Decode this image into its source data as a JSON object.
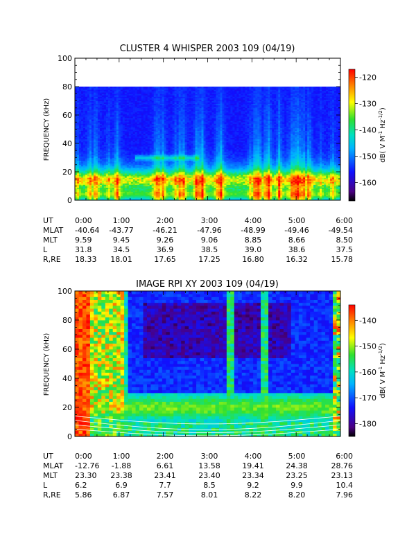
{
  "chart_data": [
    {
      "type": "heatmap",
      "title": "CLUSTER 4 WHISPER 2003 109 (04/19)",
      "ylabel": "FREQUENCY (kHz)",
      "colorbar_label": "dB( V M⁻¹ Hz⁻¹ᐟ²)",
      "colorbar_label_parts": [
        "dB( V M",
        "-1",
        " Hz",
        "-1/2",
        ")"
      ],
      "ylim": [
        0,
        100
      ],
      "data_fmax": 80,
      "yticks": [
        "0",
        "20",
        "40",
        "60",
        "80",
        "100"
      ],
      "xticks": [
        "0:00",
        "1:00",
        "2:00",
        "3:00",
        "4:00",
        "5:00",
        "6:00"
      ],
      "colorbar_range": [
        -167,
        -117
      ],
      "colorbar_ticks": [
        "-120",
        "-130",
        "-140",
        "-150",
        "-160"
      ],
      "colorbar_tick_values": [
        -120,
        -130,
        -140,
        -150,
        -160
      ],
      "ephemeris": [
        {
          "label": "UT",
          "values": [
            "0:00",
            "1:00",
            "2:00",
            "3:00",
            "4:00",
            "5:00",
            "6:00"
          ]
        },
        {
          "label": "MLAT",
          "values": [
            "-40.64",
            "-43.77",
            "-46.21",
            "-47.96",
            "-48.99",
            "-49.46",
            "-49.54"
          ]
        },
        {
          "label": "MLT",
          "values": [
            "9.59",
            "9.45",
            "9.26",
            "9.06",
            "8.85",
            "8.66",
            "8.50"
          ]
        },
        {
          "label": "L",
          "values": [
            "31.8",
            "34.5",
            "36.9",
            "38.5",
            "39.0",
            "38.6",
            "37.5"
          ]
        },
        {
          "label": "R,RE",
          "values": [
            "18.33",
            "18.01",
            "17.65",
            "17.25",
            "16.80",
            "16.32",
            "15.78"
          ]
        }
      ]
    },
    {
      "type": "heatmap",
      "title": "IMAGE RPI XY 2003 109 (04/19)",
      "ylabel": "FREQUENCY (kHz)",
      "colorbar_label": "dB( V M⁻¹ Hz⁻¹ᐟ²)",
      "colorbar_label_parts": [
        "dB( V M",
        "-1",
        " Hz",
        "-1/2",
        ")"
      ],
      "ylim": [
        0,
        100
      ],
      "yticks": [
        "0",
        "20",
        "40",
        "60",
        "80",
        "100"
      ],
      "xticks": [
        "0:00",
        "1:00",
        "2:00",
        "3:00",
        "4:00",
        "5:00",
        "6:00"
      ],
      "colorbar_range": [
        -185,
        -134
      ],
      "colorbar_ticks": [
        "-140",
        "-150",
        "-160",
        "-170",
        "-180"
      ],
      "colorbar_tick_values": [
        -140,
        -150,
        -160,
        -170,
        -180
      ],
      "ephemeris": [
        {
          "label": "UT",
          "values": [
            "0:00",
            "1:00",
            "2:00",
            "3:00",
            "4:00",
            "5:00",
            "6:00"
          ]
        },
        {
          "label": "MLAT",
          "values": [
            "-12.76",
            "-1.88",
            "6.61",
            "13.58",
            "19.41",
            "24.38",
            "28.76"
          ]
        },
        {
          "label": "MLT",
          "values": [
            "23.30",
            "23.38",
            "23.41",
            "23.40",
            "23.34",
            "23.25",
            "23.13"
          ]
        },
        {
          "label": "L",
          "values": [
            "6.2",
            "6.9",
            "7.7",
            "8.5",
            "9.2",
            "9.9",
            "10.4"
          ]
        },
        {
          "label": "R,RE",
          "values": [
            "5.86",
            "6.87",
            "7.57",
            "8.01",
            "8.22",
            "8.20",
            "7.96"
          ]
        }
      ]
    }
  ]
}
